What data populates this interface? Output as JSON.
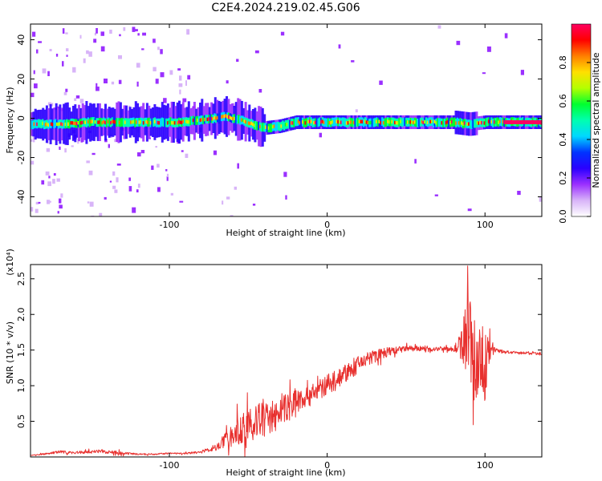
{
  "title": "C2E4.2024.219.02.45.G06",
  "chart_data": [
    {
      "type": "heatmap",
      "name": "spectrogram",
      "xlabel": "Height of straight line (km)",
      "ylabel": "Frequency (Hz)",
      "xlim": [
        -188,
        136
      ],
      "ylim": [
        -50,
        48
      ],
      "xticks": [
        -100,
        0,
        100
      ],
      "yticks": [
        -40,
        -20,
        0,
        20,
        40
      ],
      "grid": false,
      "colorbar": {
        "label": "Normalized spectral amplitude",
        "range": [
          0.0,
          1.0
        ],
        "ticks": [
          0.0,
          0.2,
          0.4,
          0.6,
          0.8
        ],
        "tick_labels": [
          "0.0",
          "0.2",
          "0.4",
          "0.6",
          "0.8"
        ],
        "colormap": [
          "#ffffff",
          "#d8b4f8",
          "#9b30ff",
          "#2a00ff",
          "#0033ff",
          "#00d8ff",
          "#00ffb0",
          "#00ff30",
          "#b4ff00",
          "#ffe000",
          "#ff8000",
          "#ff0000",
          "#ff0060"
        ]
      },
      "ridge": {
        "description": "frequency of spectral peak vs height",
        "x": [
          -188,
          -170,
          -150,
          -130,
          -110,
          -95,
          -80,
          -65,
          -55,
          -48,
          -40,
          -30,
          -20,
          -10,
          0,
          20,
          40,
          60,
          80,
          90,
          100,
          110,
          136
        ],
        "y": [
          -3,
          -3,
          -2,
          -2,
          -2,
          -2,
          -1,
          1,
          -1,
          -3,
          -5,
          -4,
          -2,
          -2,
          -2,
          -2,
          -2,
          -2,
          -2,
          -3,
          -2,
          -2,
          -2
        ]
      }
    },
    {
      "type": "line",
      "name": "snr",
      "xlabel": "Height of straight line (km)",
      "ylabel": "SNR (10 * v/v)",
      "y_multiplier": "(x10⁴)",
      "xlim": [
        -188,
        136
      ],
      "ylim": [
        0,
        2.7
      ],
      "xticks": [
        -100,
        0,
        100
      ],
      "yticks": [
        0.5,
        1.0,
        1.5,
        2.0,
        2.5
      ],
      "ytick_labels": [
        "0.5",
        "1.0",
        "1.5",
        "2.0",
        "2.5"
      ],
      "color": "#e8302e",
      "series": [
        {
          "name": "SNR",
          "x": [
            -188,
            -180,
            -170,
            -160,
            -150,
            -140,
            -130,
            -120,
            -110,
            -100,
            -90,
            -80,
            -75,
            -70,
            -65,
            -60,
            -55,
            -50,
            -45,
            -40,
            -35,
            -30,
            -25,
            -20,
            -15,
            -10,
            -5,
            0,
            5,
            10,
            15,
            20,
            25,
            30,
            35,
            40,
            45,
            50,
            55,
            60,
            65,
            70,
            75,
            80,
            83,
            86,
            88,
            90,
            92,
            94,
            96,
            98,
            100,
            102,
            104,
            106,
            110,
            115,
            120,
            125,
            130,
            136
          ],
          "y": [
            0.02,
            0.04,
            0.07,
            0.06,
            0.07,
            0.08,
            0.05,
            0.04,
            0.04,
            0.05,
            0.05,
            0.07,
            0.1,
            0.15,
            0.22,
            0.3,
            0.38,
            0.45,
            0.5,
            0.52,
            0.55,
            0.62,
            0.7,
            0.78,
            0.85,
            0.9,
            0.95,
            1.0,
            1.1,
            1.15,
            1.2,
            1.3,
            1.38,
            1.42,
            1.45,
            1.48,
            1.5,
            1.52,
            1.52,
            1.52,
            1.52,
            1.52,
            1.52,
            1.52,
            1.55,
            1.6,
            1.8,
            1.7,
            1.5,
            1.3,
            1.4,
            1.5,
            1.2,
            1.45,
            1.5,
            1.5,
            1.48,
            1.47,
            1.46,
            1.46,
            1.45,
            1.44
          ],
          "variability": [
            0.005,
            0.01,
            0.02,
            0.02,
            0.02,
            0.03,
            0.02,
            0.01,
            0.01,
            0.01,
            0.01,
            0.02,
            0.03,
            0.05,
            0.1,
            0.15,
            0.2,
            0.22,
            0.25,
            0.25,
            0.2,
            0.2,
            0.22,
            0.22,
            0.18,
            0.18,
            0.15,
            0.15,
            0.15,
            0.15,
            0.12,
            0.12,
            0.12,
            0.1,
            0.08,
            0.06,
            0.05,
            0.04,
            0.04,
            0.04,
            0.04,
            0.03,
            0.03,
            0.04,
            0.1,
            0.3,
            0.6,
            0.7,
            0.8,
            0.6,
            0.7,
            0.5,
            0.5,
            0.3,
            0.1,
            0.05,
            0.03,
            0.02,
            0.02,
            0.02,
            0.02,
            0.02
          ]
        }
      ]
    }
  ]
}
